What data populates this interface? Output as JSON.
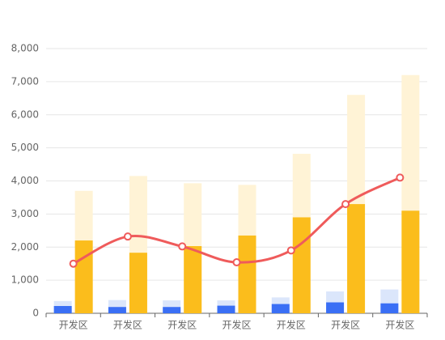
{
  "chart_data": {
    "type": "bar",
    "categories": [
      "开发区",
      "开发区",
      "开发区",
      "开发区",
      "开发区",
      "开发区",
      "开发区"
    ],
    "series": [
      {
        "type": "bar",
        "color": "#dbe6fb",
        "values": [
          370,
          400,
          390,
          390,
          480,
          660,
          720
        ]
      },
      {
        "type": "bar",
        "color": "#3a6ff5",
        "values": [
          220,
          190,
          190,
          230,
          280,
          330,
          300
        ]
      },
      {
        "type": "bar",
        "color": "#fff3d6",
        "values": [
          3700,
          4150,
          3930,
          3880,
          4820,
          6600,
          7200
        ]
      },
      {
        "type": "bar",
        "color": "#fbbd1c",
        "values": [
          2200,
          1830,
          2030,
          2350,
          2900,
          3300,
          3100
        ]
      },
      {
        "type": "line",
        "color": "#ef5b5b",
        "smooth": true,
        "values": [
          1500,
          2320,
          2020,
          1540,
          1900,
          3300,
          4100
        ]
      }
    ],
    "ylim": [
      0,
      8000
    ],
    "yticks": [
      0,
      {
        "value": 1000,
        "label": "1,000"
      },
      {
        "value": 2000,
        "label": "2,000"
      },
      {
        "value": 3000,
        "label": "3,000"
      },
      {
        "value": 4000,
        "label": "4,000"
      },
      {
        "value": 5000,
        "label": "5,000"
      },
      {
        "value": 6000,
        "label": "6,000"
      },
      {
        "value": 7000,
        "label": "7,000"
      },
      {
        "value": 8000,
        "label": "8,000"
      }
    ],
    "grid": true
  }
}
